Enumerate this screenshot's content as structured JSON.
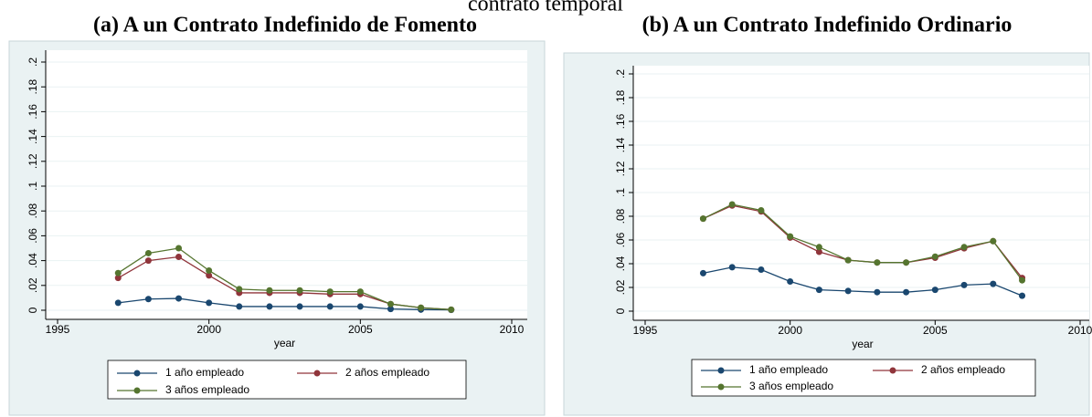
{
  "page_title": "contrato temporal",
  "chart_data": [
    {
      "type": "line",
      "title": "(a) A un Contrato Indefinido de Fomento",
      "xlabel": "year",
      "x": [
        1997,
        1998,
        1999,
        2000,
        2001,
        2002,
        2003,
        2004,
        2005,
        2006,
        2007,
        2008
      ],
      "series": [
        {
          "name": "1 año empleado",
          "color": "#1a476f",
          "values": [
            0.006,
            0.009,
            0.0095,
            0.006,
            0.003,
            0.003,
            0.003,
            0.003,
            0.003,
            0.001,
            0.0005,
            0.0003
          ]
        },
        {
          "name": "2 años empleado",
          "color": "#90353b",
          "values": [
            0.026,
            0.04,
            0.043,
            0.028,
            0.014,
            0.014,
            0.014,
            0.013,
            0.013,
            0.005,
            0.002,
            0.0005
          ]
        },
        {
          "name": "3 años empleado",
          "color": "#55752f",
          "values": [
            0.03,
            0.046,
            0.05,
            0.032,
            0.017,
            0.016,
            0.016,
            0.015,
            0.015,
            0.005,
            0.002,
            0.0005
          ]
        }
      ],
      "xlim": [
        1995,
        2010
      ],
      "xticks": [
        1995,
        2000,
        2005,
        2010
      ],
      "ylim": [
        0,
        0.2
      ],
      "yticks": [
        0,
        {
          "value": 0.02,
          "label": ".02"
        },
        {
          "value": 0.04,
          "label": ".04"
        },
        {
          "value": 0.06,
          "label": ".06"
        },
        {
          "value": 0.08,
          "label": ".08"
        },
        {
          "value": 0.1,
          "label": ".1"
        },
        {
          "value": 0.12,
          "label": ".12"
        },
        {
          "value": 0.14,
          "label": ".14"
        },
        {
          "value": 0.16,
          "label": ".16"
        },
        {
          "value": 0.18,
          "label": ".18"
        },
        {
          "value": 0.2,
          "label": ".2"
        }
      ],
      "grid": true,
      "legend": "bottom"
    },
    {
      "type": "line",
      "title": "(b) A un Contrato Indefinido Ordinario",
      "xlabel": "year",
      "x": [
        1997,
        1998,
        1999,
        2000,
        2001,
        2002,
        2003,
        2004,
        2005,
        2006,
        2007,
        2008
      ],
      "series": [
        {
          "name": "1 año empleado",
          "color": "#1a476f",
          "values": [
            0.032,
            0.037,
            0.035,
            0.025,
            0.018,
            0.017,
            0.016,
            0.016,
            0.018,
            0.022,
            0.023,
            0.013
          ]
        },
        {
          "name": "2 años empleado",
          "color": "#90353b",
          "values": [
            0.078,
            0.089,
            0.084,
            0.062,
            0.05,
            0.043,
            0.041,
            0.041,
            0.045,
            0.053,
            0.059,
            0.028
          ]
        },
        {
          "name": "3 años empleado",
          "color": "#55752f",
          "values": [
            0.078,
            0.09,
            0.085,
            0.063,
            0.054,
            0.043,
            0.041,
            0.041,
            0.046,
            0.054,
            0.059,
            0.026
          ]
        }
      ],
      "xlim": [
        1995,
        2010
      ],
      "xticks": [
        1995,
        2000,
        2005,
        2010
      ],
      "ylim": [
        0,
        0.2
      ],
      "yticks": [
        0,
        {
          "value": 0.02,
          "label": ".02"
        },
        {
          "value": 0.04,
          "label": ".04"
        },
        {
          "value": 0.06,
          "label": ".06"
        },
        {
          "value": 0.08,
          "label": ".08"
        },
        {
          "value": 0.1,
          "label": ".1"
        },
        {
          "value": 0.12,
          "label": ".12"
        },
        {
          "value": 0.14,
          "label": ".14"
        },
        {
          "value": 0.16,
          "label": ".16"
        },
        {
          "value": 0.18,
          "label": ".18"
        },
        {
          "value": 0.2,
          "label": ".2"
        }
      ],
      "grid": true,
      "legend": "bottom"
    }
  ]
}
